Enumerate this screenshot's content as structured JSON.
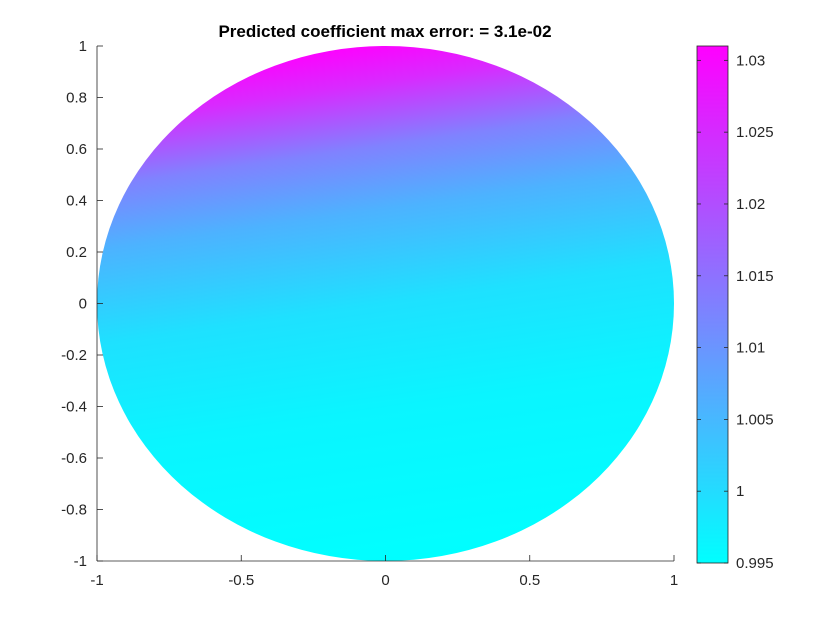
{
  "chart_data": {
    "type": "heatmap",
    "title": "Predicted coefficient max error: = 3.1e-02",
    "xlabel": "",
    "ylabel": "",
    "domain_shape": "unit disk",
    "xlim": [
      -1,
      1
    ],
    "ylim": [
      -1,
      1
    ],
    "x_ticks": [
      -1,
      -0.5,
      0,
      0.5,
      1
    ],
    "x_tick_labels": [
      "-1",
      "-0.5",
      "0",
      "0.5",
      "1"
    ],
    "y_ticks": [
      -1,
      -0.8,
      -0.6,
      -0.4,
      -0.2,
      0,
      0.2,
      0.4,
      0.6,
      0.8,
      1
    ],
    "y_tick_labels": [
      "-1",
      "-0.8",
      "-0.6",
      "-0.4",
      "-0.2",
      "0",
      "0.2",
      "0.4",
      "0.6",
      "0.8",
      "1"
    ],
    "grid": false,
    "colormap": "cool",
    "colormap_low_color": "#00FFFF",
    "colormap_high_color": "#FF00FF",
    "field_samples": [
      {
        "x": 0,
        "y": 1,
        "value": 1.031
      },
      {
        "x": -0.5,
        "y": 0.85,
        "value": 1.024
      },
      {
        "x": 0,
        "y": 0.6,
        "value": 1.008
      },
      {
        "x": 0,
        "y": 0,
        "value": 0.999
      },
      {
        "x": 0,
        "y": -1,
        "value": 0.995
      },
      {
        "x": 1,
        "y": 0,
        "value": 0.996
      }
    ],
    "colorbar": {
      "location": "right",
      "limits": [
        0.995,
        1.031
      ],
      "ticks": [
        0.995,
        1,
        1.005,
        1.01,
        1.015,
        1.02,
        1.025,
        1.03
      ],
      "tick_labels": [
        "0.995",
        "1",
        "1.005",
        "1.01",
        "1.015",
        "1.02",
        "1.025",
        "1.03"
      ]
    }
  }
}
